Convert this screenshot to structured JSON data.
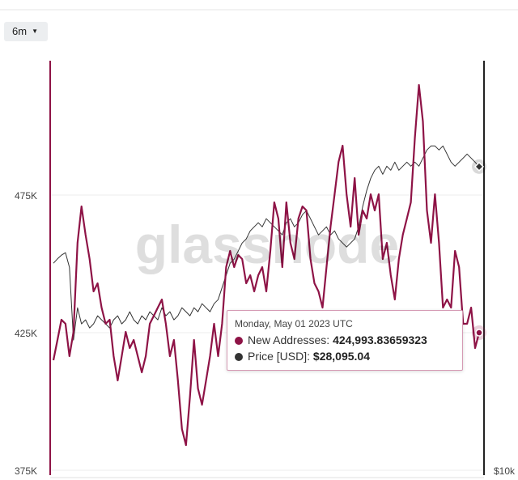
{
  "chart_data": {
    "type": "line",
    "range_button": "6m",
    "watermark": "glassnode",
    "ylim": [
      375000,
      525000
    ],
    "yticks": [
      {
        "value": 375000,
        "label": "375K"
      },
      {
        "value": 425000,
        "label": "425K"
      },
      {
        "value": 475000,
        "label": "475K"
      }
    ],
    "y2lim": [
      10000,
      34600
    ],
    "y2ticks": [
      {
        "value": 10000,
        "label": "$10k"
      }
    ],
    "grid": true,
    "series": [
      {
        "name": "New Addresses",
        "color": "#8e1346",
        "axis": "y",
        "values": [
          415000,
          422353,
          429706,
          428235,
          416471,
          425294,
          457647,
          470882,
          460588,
          451765,
          440000,
          442941,
          434118,
          428235,
          429706,
          416471,
          407647,
          416471,
          425294,
          419412,
          422353,
          416471,
          410588,
          416471,
          428235,
          431176,
          434118,
          437059,
          428235,
          416471,
          422353,
          407647,
          390000,
          384118,
          401765,
          422353,
          404706,
          398824,
          407647,
          416471,
          428235,
          416471,
          428235,
          448824,
          454706,
          448824,
          453235,
          451765,
          442941,
          445882,
          440000,
          445882,
          448824,
          440000,
          454706,
          472353,
          466471,
          448824,
          472353,
          457647,
          451765,
          466471,
          470882,
          469412,
          451765,
          442941,
          440000,
          434118,
          448824,
          463529,
          475294,
          487059,
          492941,
          475294,
          463529,
          481176,
          460588,
          469412,
          466471,
          475294,
          469412,
          475294,
          451765,
          457647,
          445882,
          437059,
          451765,
          460588,
          466471,
          472353,
          495882,
          515000,
          501765,
          469412,
          457647,
          475294,
          457647,
          434118,
          437059,
          434118,
          454706,
          448824,
          428235,
          428235,
          434118,
          419412,
          424993.83659323
        ]
      },
      {
        "name": "Price [USD]",
        "color": "#333333",
        "axis": "y2",
        "values": [
          22339,
          22600,
          22821,
          22966,
          22098,
          17760,
          19688,
          18724,
          18965,
          18483,
          18724,
          19206,
          18965,
          18724,
          18483,
          18965,
          19206,
          18724,
          18965,
          19447,
          18965,
          18724,
          19206,
          18965,
          19447,
          19206,
          18965,
          19688,
          19206,
          19447,
          18965,
          19206,
          19688,
          19447,
          19206,
          19688,
          19447,
          19929,
          19688,
          19447,
          19929,
          20170,
          20893,
          21616,
          22339,
          22580,
          23061,
          23544,
          23785,
          24267,
          24508,
          24749,
          24508,
          24990,
          24749,
          24508,
          24267,
          24026,
          24749,
          24990,
          24508,
          24749,
          25231,
          25472,
          24990,
          24508,
          24026,
          24267,
          24508,
          24026,
          24267,
          23785,
          23544,
          23302,
          23544,
          23785,
          24508,
          25713,
          26677,
          27400,
          27882,
          28123,
          27641,
          28123,
          27882,
          28364,
          27882,
          28123,
          28364,
          28123,
          28364,
          28123,
          28605,
          29087,
          29328,
          29328,
          29087,
          29328,
          28846,
          28364,
          28123,
          28364,
          28605,
          28846,
          28605,
          28364,
          28095.04
        ]
      }
    ],
    "tooltip": {
      "date": "Monday, May 01 2023 UTC",
      "items": [
        {
          "label": "New Addresses:",
          "value": "424,993.83659323"
        },
        {
          "label": "Price [USD]:",
          "value": "$28,095.04"
        }
      ]
    }
  }
}
